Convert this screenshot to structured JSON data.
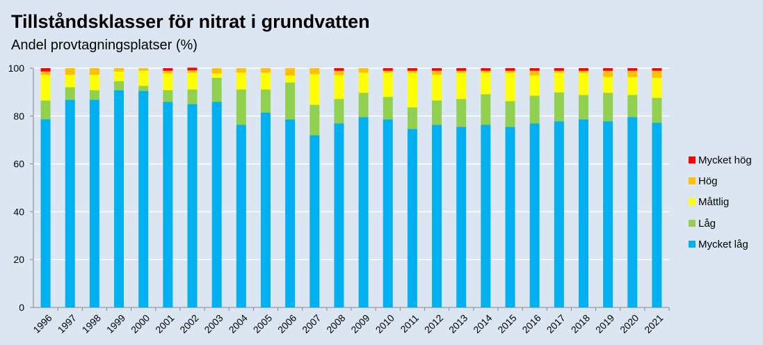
{
  "chart_data": {
    "type": "bar",
    "stacked": true,
    "title": "Tillståndsklasser för nitrat i grundvatten",
    "subtitle": "Andel provtagningsplatser (%)",
    "xlabel": "",
    "ylabel": "",
    "ylim": [
      0,
      100
    ],
    "yticks": [
      0,
      20,
      40,
      60,
      80,
      100
    ],
    "grid": true,
    "legend_position": "right",
    "categories": [
      "1996",
      "1997",
      "1998",
      "1999",
      "2000",
      "2001",
      "2002",
      "2003",
      "2004",
      "2005",
      "2006",
      "2007",
      "2008",
      "2009",
      "2010",
      "2011",
      "2012",
      "2013",
      "2014",
      "2015",
      "2016",
      "2017",
      "2018",
      "2019",
      "2020",
      "2021"
    ],
    "series": [
      {
        "name": "Mycket låg",
        "color": "#00b0f0",
        "values": [
          78.7,
          86.8,
          86.8,
          90.8,
          90.5,
          85.9,
          85.0,
          85.9,
          76.3,
          81.5,
          78.6,
          72.0,
          76.9,
          79.5,
          78.6,
          74.6,
          76.3,
          75.5,
          76.3,
          75.5,
          76.9,
          77.8,
          78.6,
          77.8,
          79.5,
          77.2
        ]
      },
      {
        "name": "Låg",
        "color": "#92d050",
        "values": [
          7.8,
          5.2,
          4.0,
          3.8,
          2.1,
          4.9,
          6.1,
          10.1,
          14.8,
          9.6,
          15.4,
          12.7,
          10.2,
          10.2,
          9.4,
          9.0,
          10.2,
          11.6,
          12.8,
          10.7,
          11.6,
          12.1,
          10.2,
          11.9,
          9.3,
          10.4
        ]
      },
      {
        "name": "Måttlig",
        "color": "#ffff00",
        "values": [
          10.7,
          5.2,
          6.4,
          4.0,
          6.3,
          7.0,
          7.0,
          1.8,
          7.0,
          7.0,
          2.9,
          12.8,
          10.1,
          8.4,
          10.1,
          14.5,
          10.7,
          11.0,
          9.0,
          11.9,
          8.4,
          8.2,
          9.3,
          6.6,
          7.5,
          8.4
        ]
      },
      {
        "name": "Hög",
        "color": "#ffc000",
        "values": [
          1.4,
          2.8,
          2.8,
          1.4,
          1.1,
          1.1,
          1.0,
          2.2,
          1.9,
          1.9,
          3.1,
          2.5,
          1.7,
          1.9,
          0.8,
          0.8,
          1.7,
          0.8,
          0.8,
          0.8,
          2.0,
          0.8,
          0.8,
          2.6,
          2.6,
          2.9
        ]
      },
      {
        "name": "Mycket hög",
        "color": "#ff0000",
        "values": [
          1.4,
          0,
          0,
          0,
          0,
          1.1,
          1.1,
          0,
          0,
          0,
          0,
          0,
          1.1,
          0,
          1.1,
          1.1,
          1.1,
          1.1,
          1.1,
          1.1,
          1.1,
          1.1,
          1.1,
          1.1,
          1.1,
          1.1
        ]
      }
    ]
  }
}
